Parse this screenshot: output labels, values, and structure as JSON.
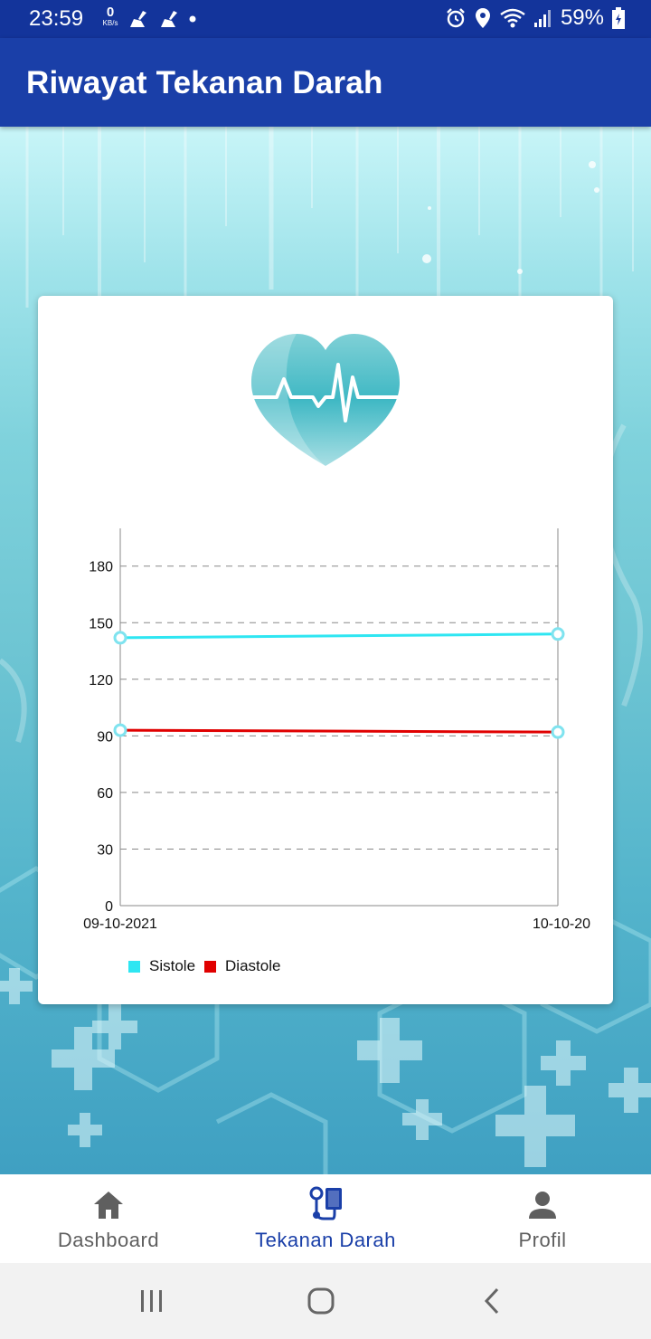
{
  "status_bar": {
    "time": "23:59",
    "speed_value": "0",
    "speed_unit": "KB/s",
    "battery": "59%"
  },
  "app_bar": {
    "title": "Riwayat Tekanan Darah"
  },
  "chart_data": {
    "type": "line",
    "categories": [
      "09-10-2021",
      "10-10-20"
    ],
    "series": [
      {
        "name": "Sistole",
        "values": [
          142,
          144
        ],
        "color": "#2ee6f2"
      },
      {
        "name": "Diastole",
        "values": [
          93,
          92
        ],
        "color": "#e00000"
      }
    ],
    "yticks": [
      "0",
      "30",
      "60",
      "90",
      "120",
      "150",
      "180"
    ],
    "ylim": [
      0,
      200
    ],
    "grid": "dashed-horizontal",
    "legend_position": "bottom-left"
  },
  "bottom_nav": {
    "items": [
      {
        "label": "Dashboard",
        "icon": "home-icon",
        "active": false
      },
      {
        "label": "Tekanan Darah",
        "icon": "blood-pressure-icon",
        "active": true
      },
      {
        "label": "Profil",
        "icon": "person-icon",
        "active": false
      }
    ],
    "active_color": "#1a3fa8"
  },
  "colors": {
    "app_bar": "#1a3fa8",
    "status_bar": "#13349b"
  }
}
